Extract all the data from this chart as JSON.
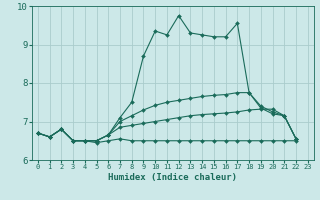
{
  "xlabel": "Humidex (Indice chaleur)",
  "bg_color": "#cce8e8",
  "grid_color": "#aacccc",
  "line_color": "#1a6b5a",
  "xlim": [
    -0.5,
    23.5
  ],
  "ylim": [
    6.0,
    10.0
  ],
  "yticks": [
    6,
    7,
    8,
    9,
    10
  ],
  "xticks": [
    0,
    1,
    2,
    3,
    4,
    5,
    6,
    7,
    8,
    9,
    10,
    11,
    12,
    13,
    14,
    15,
    16,
    17,
    18,
    19,
    20,
    21,
    22,
    23
  ],
  "series": [
    {
      "x": [
        0,
        1,
        2,
        3,
        4,
        5,
        6,
        7,
        8,
        9,
        10,
        11,
        12,
        13,
        14,
        15,
        16,
        17,
        18,
        19,
        20,
        21,
        22
      ],
      "y": [
        6.7,
        6.6,
        6.8,
        6.5,
        6.5,
        6.5,
        6.65,
        7.1,
        7.5,
        8.7,
        9.35,
        9.25,
        9.75,
        9.3,
        9.25,
        9.2,
        9.2,
        9.55,
        7.75,
        7.35,
        7.2,
        7.15,
        6.55
      ]
    },
    {
      "x": [
        0,
        1,
        2,
        3,
        4,
        5,
        6,
        7,
        8,
        9,
        10,
        11,
        12,
        13,
        14,
        15,
        16,
        17,
        18,
        19,
        20,
        21,
        22
      ],
      "y": [
        6.7,
        6.6,
        6.8,
        6.5,
        6.5,
        6.5,
        6.65,
        7.0,
        7.15,
        7.3,
        7.42,
        7.5,
        7.55,
        7.6,
        7.65,
        7.68,
        7.7,
        7.75,
        7.75,
        7.4,
        7.25,
        7.15,
        6.55
      ]
    },
    {
      "x": [
        0,
        1,
        2,
        3,
        4,
        5,
        6,
        7,
        8,
        9,
        10,
        11,
        12,
        13,
        14,
        15,
        16,
        17,
        18,
        19,
        20,
        21,
        22
      ],
      "y": [
        6.7,
        6.6,
        6.8,
        6.5,
        6.5,
        6.5,
        6.65,
        6.85,
        6.9,
        6.95,
        7.0,
        7.05,
        7.1,
        7.15,
        7.18,
        7.2,
        7.22,
        7.25,
        7.3,
        7.32,
        7.32,
        7.15,
        6.55
      ]
    },
    {
      "x": [
        0,
        1,
        2,
        3,
        4,
        5,
        6,
        7,
        8,
        9,
        10,
        11,
        12,
        13,
        14,
        15,
        16,
        17,
        18,
        19,
        20,
        21,
        22
      ],
      "y": [
        6.7,
        6.6,
        6.8,
        6.5,
        6.5,
        6.45,
        6.5,
        6.55,
        6.5,
        6.5,
        6.5,
        6.5,
        6.5,
        6.5,
        6.5,
        6.5,
        6.5,
        6.5,
        6.5,
        6.5,
        6.5,
        6.5,
        6.5
      ]
    }
  ]
}
